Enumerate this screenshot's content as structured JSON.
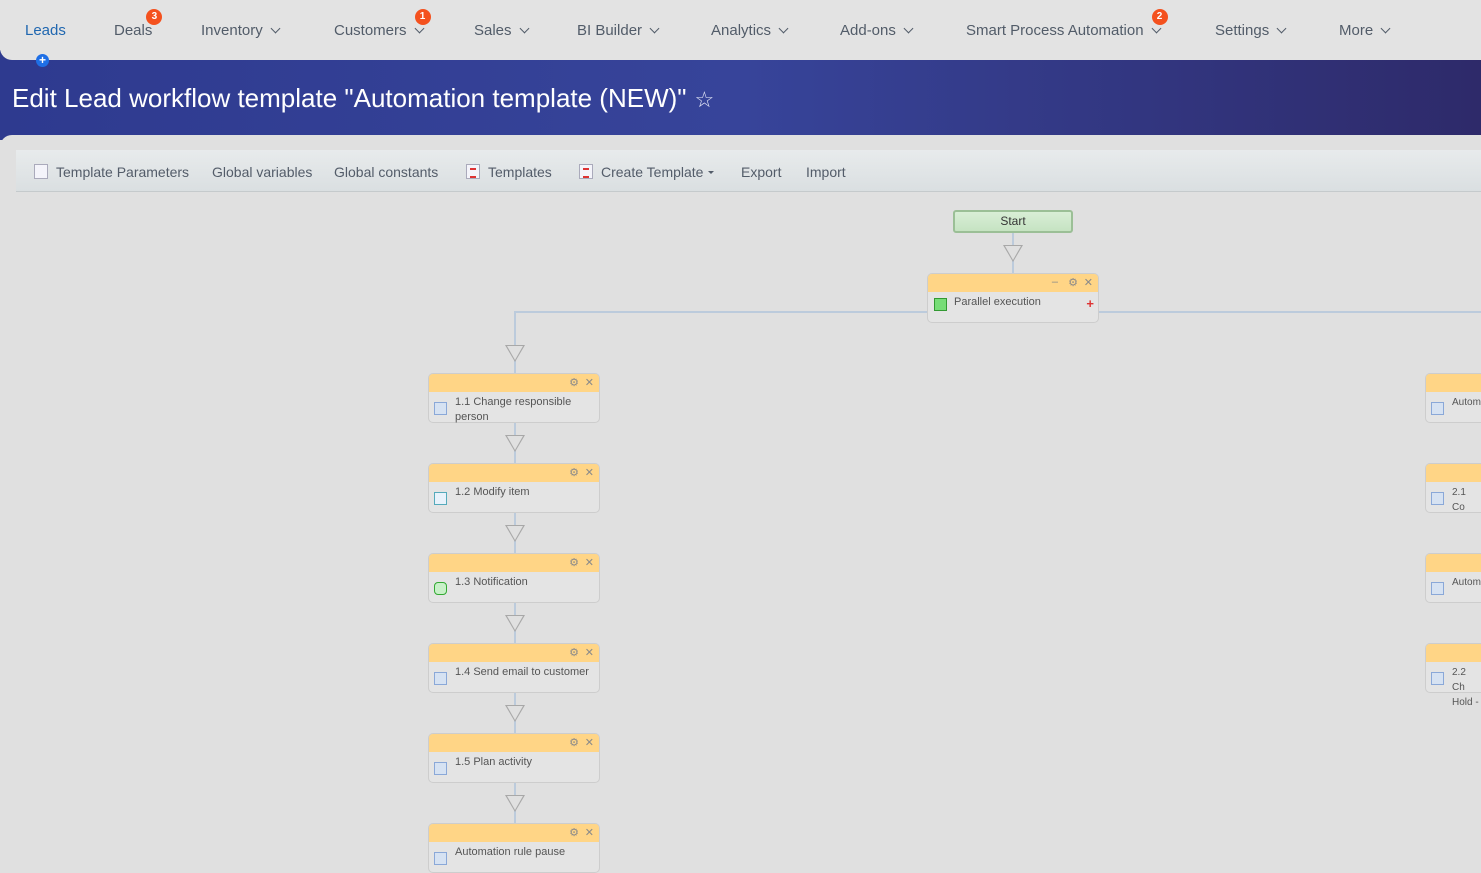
{
  "nav": {
    "items": [
      {
        "label": "Leads",
        "active": true,
        "chevron": false
      },
      {
        "label": "Deals",
        "badge": "3",
        "chevron": false
      },
      {
        "label": "Inventory",
        "chevron": true
      },
      {
        "label": "Customers",
        "badge": "1",
        "chevron": true
      },
      {
        "label": "Sales",
        "chevron": true
      },
      {
        "label": "BI Builder",
        "chevron": true
      },
      {
        "label": "Analytics",
        "chevron": true
      },
      {
        "label": "Add-ons",
        "chevron": true
      },
      {
        "label": "Smart Process Automation",
        "badge": "2",
        "chevron": true
      },
      {
        "label": "Settings",
        "chevron": true
      },
      {
        "label": "More",
        "chevron": true
      }
    ],
    "add_icon": "plus-circle-icon"
  },
  "header": {
    "title": "Edit Lead workflow template \"Automation template (NEW)\"",
    "star": "☆"
  },
  "toolbar": {
    "template_parameters": "Template Parameters",
    "global_variables": "Global variables",
    "global_constants": "Global constants",
    "templates": "Templates",
    "create_template": "Create Template",
    "export": "Export",
    "import": "Import"
  },
  "flow": {
    "start": "Start",
    "parallel": "Parallel execution",
    "left": [
      {
        "label": "1.1 Change responsible person",
        "icon": "settings"
      },
      {
        "label": "1.2 Modify item",
        "icon": "edit"
      },
      {
        "label": "1.3 Notification",
        "icon": "chat"
      },
      {
        "label": "1.4 Send email to customer",
        "icon": "settings"
      },
      {
        "label": "1.5 Plan activity",
        "icon": "settings"
      },
      {
        "label": "Automation rule pause",
        "icon": "settings"
      }
    ],
    "right": [
      {
        "label": "Autom",
        "icon": "settings"
      },
      {
        "label": "2.1 Co",
        "icon": "settings"
      },
      {
        "label": "Autom",
        "icon": "settings"
      },
      {
        "label": "2.2 Ch Hold -",
        "icon": "settings"
      }
    ]
  },
  "colors": {
    "accent": "#2067b0",
    "header": "#37449a",
    "node_header": "#ffd586",
    "badge": "#f4511e"
  }
}
